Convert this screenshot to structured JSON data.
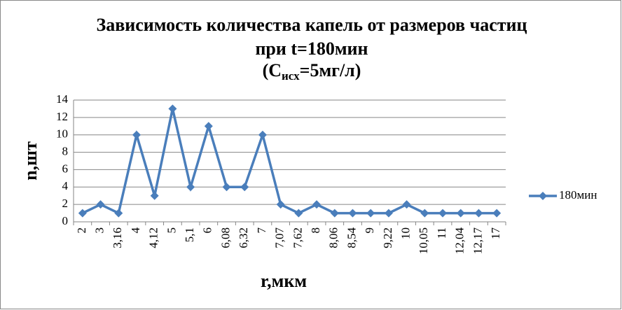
{
  "chart_data": {
    "type": "line",
    "title": {
      "lines": [
        "Зависимость количества капель от размеров частиц",
        "при t=180мин"
      ],
      "formula": [
        "(C",
        "исх",
        "=5мг/л)"
      ]
    },
    "x_label": "r,мкм",
    "y_label": "n,шт",
    "categories": [
      "2",
      "3",
      "3,16",
      "4",
      "4,12",
      "5",
      "5,1",
      "6",
      "6,08",
      "6,32",
      "7",
      "7,07",
      "7,62",
      "8",
      "8,06",
      "8,54",
      "9",
      "9,22",
      "10",
      "10,05",
      "11",
      "12,04",
      "12,17",
      "17"
    ],
    "series": [
      {
        "name": "180мин",
        "color": "#4a7ebb",
        "values": [
          1,
          2,
          1,
          10,
          3,
          13,
          4,
          11,
          4,
          4,
          10,
          2,
          1,
          2,
          1,
          1,
          1,
          1,
          2,
          1,
          1,
          1,
          1,
          1
        ]
      }
    ],
    "ylim": [
      0,
      14
    ],
    "yticks": [
      0,
      2,
      4,
      6,
      8,
      10,
      12,
      14
    ],
    "grid": true,
    "legend": "right"
  }
}
